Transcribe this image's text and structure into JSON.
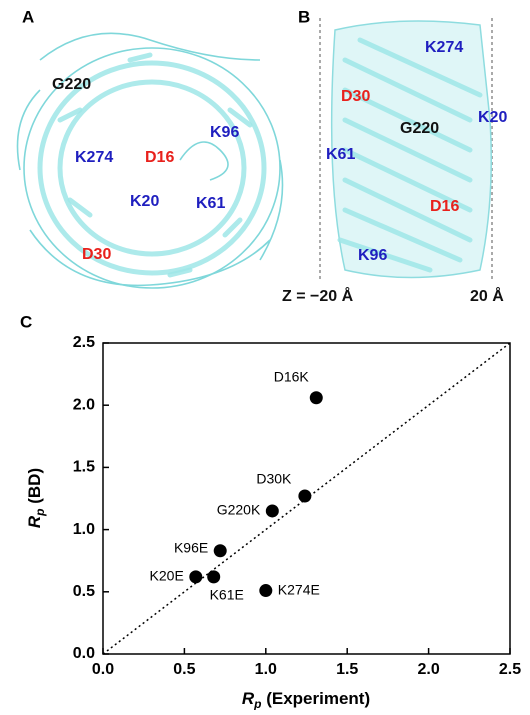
{
  "panel_labels": [
    "A",
    "B",
    "C"
  ],
  "panel_a": {
    "labels": [
      "G220",
      "K274",
      "D16",
      "K96",
      "K20",
      "K61",
      "D30"
    ]
  },
  "panel_b": {
    "labels": [
      "K274",
      "D30",
      "K20",
      "G220",
      "K61",
      "D16",
      "K96"
    ],
    "z_left": "Z = −20 Å",
    "z_right": "20 Å"
  },
  "chart_data": {
    "type": "scatter",
    "labels": [
      "D16K",
      "D30K",
      "G220K",
      "K96E",
      "K20E",
      "K61E",
      "K274E"
    ],
    "x": [
      1.31,
      1.24,
      1.04,
      0.72,
      0.57,
      0.68,
      1.0
    ],
    "values": [
      2.06,
      1.27,
      1.15,
      0.83,
      0.62,
      0.62,
      0.51
    ],
    "color": "#000000",
    "xlabel": {
      "symbol": "R",
      "subscript": "p",
      "text": " (Experiment)"
    },
    "ylabel": {
      "symbol": "R",
      "subscript": "p",
      "text": " (BD)"
    },
    "xlim": [
      0,
      2.5
    ],
    "ylim": [
      0,
      2.5
    ],
    "xticks": [
      {
        "value": 0,
        "label": "0.0"
      },
      0.5,
      {
        "value": 1,
        "label": "1.0"
      },
      1.5,
      {
        "value": 2,
        "label": "2.0"
      },
      2.5
    ],
    "yticks": [
      {
        "value": 0,
        "label": "0.0"
      },
      0.5,
      {
        "value": 1,
        "label": "1.0"
      },
      1.5,
      {
        "value": 2,
        "label": "2.0"
      },
      2.5
    ]
  }
}
